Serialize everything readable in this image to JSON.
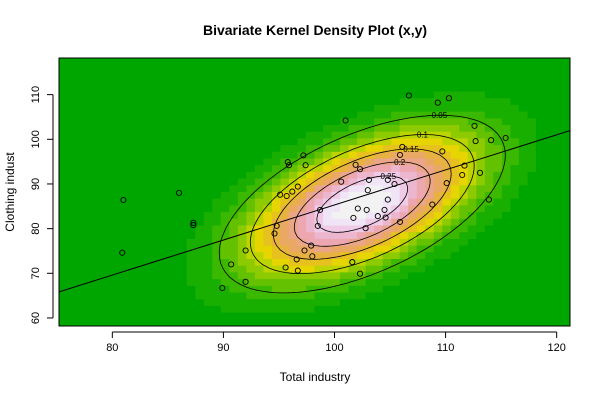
{
  "chart_data": {
    "type": "scatter",
    "title": "Bivariate Kernel Density Plot (x,y)",
    "xlabel": "Total industry",
    "ylabel": "Clothing indust",
    "xlim": [
      75.2,
      121.2
    ],
    "ylim": [
      58.2,
      118.2
    ],
    "x_ticks": [
      80,
      90,
      100,
      110,
      120
    ],
    "y_ticks": [
      60,
      70,
      80,
      90,
      100,
      110
    ],
    "points": [
      [
        81.0,
        86.4
      ],
      [
        80.9,
        74.6
      ],
      [
        86.0,
        88.0
      ],
      [
        87.3,
        81.3
      ],
      [
        87.3,
        80.8
      ],
      [
        89.9,
        66.7
      ],
      [
        90.7,
        72.0
      ],
      [
        92.0,
        75.1
      ],
      [
        92.0,
        68.1
      ],
      [
        94.6,
        78.9
      ],
      [
        94.8,
        80.6
      ],
      [
        95.1,
        87.6
      ],
      [
        95.6,
        71.3
      ],
      [
        95.7,
        87.3
      ],
      [
        95.8,
        94.9
      ],
      [
        95.9,
        94.2
      ],
      [
        96.2,
        88.3
      ],
      [
        96.6,
        73.1
      ],
      [
        96.7,
        89.4
      ],
      [
        96.7,
        70.6
      ],
      [
        97.2,
        96.4
      ],
      [
        97.3,
        75.1
      ],
      [
        97.4,
        94.2
      ],
      [
        97.9,
        76.2
      ],
      [
        98.0,
        73.8
      ],
      [
        98.5,
        80.6
      ],
      [
        98.7,
        84.2
      ],
      [
        100.6,
        90.5
      ],
      [
        101.0,
        104.2
      ],
      [
        101.6,
        72.5
      ],
      [
        101.7,
        82.4
      ],
      [
        101.9,
        94.3
      ],
      [
        102.1,
        84.5
      ],
      [
        102.3,
        69.9
      ],
      [
        102.3,
        93.3
      ],
      [
        102.8,
        80.1
      ],
      [
        102.9,
        84.2
      ],
      [
        103.0,
        88.6
      ],
      [
        103.1,
        90.9
      ],
      [
        103.9,
        82.8
      ],
      [
        104.5,
        84.2
      ],
      [
        104.6,
        82.5
      ],
      [
        104.8,
        90.9
      ],
      [
        104.8,
        86.5
      ],
      [
        105.4,
        90.0
      ],
      [
        105.9,
        96.5
      ],
      [
        105.9,
        81.5
      ],
      [
        106.1,
        98.3
      ],
      [
        106.7,
        109.8
      ],
      [
        108.8,
        85.4
      ],
      [
        109.3,
        108.2
      ],
      [
        109.7,
        97.3
      ],
      [
        110.1,
        90.2
      ],
      [
        110.3,
        109.2
      ],
      [
        111.5,
        92.0
      ],
      [
        111.7,
        94.1
      ],
      [
        112.6,
        103.0
      ],
      [
        112.7,
        99.6
      ],
      [
        113.1,
        92.5
      ],
      [
        113.9,
        86.5
      ],
      [
        114.1,
        99.8
      ],
      [
        115.4,
        100.3
      ]
    ],
    "regression_line": {
      "intercept": 6.8,
      "slope": 0.785
    },
    "density": {
      "center": [
        102.5,
        85.5
      ],
      "sd_x": 6.8,
      "sd_y": 10.5,
      "rho": 0.55,
      "peak": 0.3,
      "levels": [
        0.05,
        0.1,
        0.15,
        0.2,
        0.25
      ],
      "level_labels": [
        "0.05",
        "0.1",
        "0.15",
        "0.2",
        "0.25"
      ],
      "colors": [
        "#00a600",
        "#19af00",
        "#3bb800",
        "#63c100",
        "#8dcb00",
        "#bcd400",
        "#e6d500",
        "#e7c11e",
        "#e8b242",
        "#eaa865",
        "#eba689",
        "#eca7b0",
        "#edb6cf",
        "#efcbe7",
        "#f0e4f7",
        "#f2f2f2"
      ]
    },
    "grid": false,
    "legend": "none"
  }
}
